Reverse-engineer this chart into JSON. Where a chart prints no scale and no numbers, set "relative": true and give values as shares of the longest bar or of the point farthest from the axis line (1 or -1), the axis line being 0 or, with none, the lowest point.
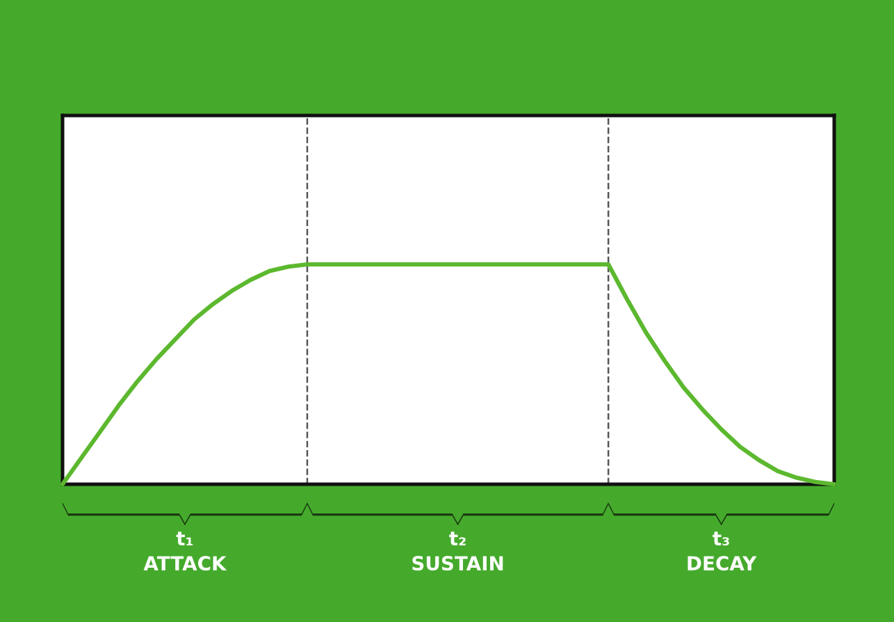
{
  "chart_data": {
    "type": "line",
    "relative": true,
    "categories": [
      null,
      null,
      null,
      null,
      null,
      null,
      null,
      null,
      null,
      null,
      null,
      null,
      null,
      null,
      null,
      null,
      null,
      null,
      null,
      null,
      null,
      null,
      null,
      null,
      null,
      null,
      null,
      null,
      null,
      null,
      null,
      null,
      null,
      null,
      null,
      null,
      null,
      null,
      null,
      null,
      null,
      null
    ],
    "series": [
      {
        "color": "#5cb82e",
        "values": [
          0,
          0.12,
          0.24,
          0.36,
          0.47,
          0.57,
          0.66,
          0.75,
          0.82,
          0.88,
          0.93,
          0.97,
          0.99,
          1,
          1,
          1,
          1,
          1,
          1,
          1,
          1,
          1,
          1,
          1,
          1,
          1,
          1,
          1,
          1,
          1,
          0.84,
          0.69,
          0.56,
          0.44,
          0.34,
          0.25,
          0.17,
          0.11,
          0.06,
          0.03,
          0.01,
          0
        ]
      }
    ],
    "annotations": [
      "t₁",
      "ATTACK",
      "t₂",
      "SUSTAIN",
      "t₃",
      "DECAY"
    ],
    "tick_labels": false,
    "marker": "none",
    "line_style": "solid"
  }
}
